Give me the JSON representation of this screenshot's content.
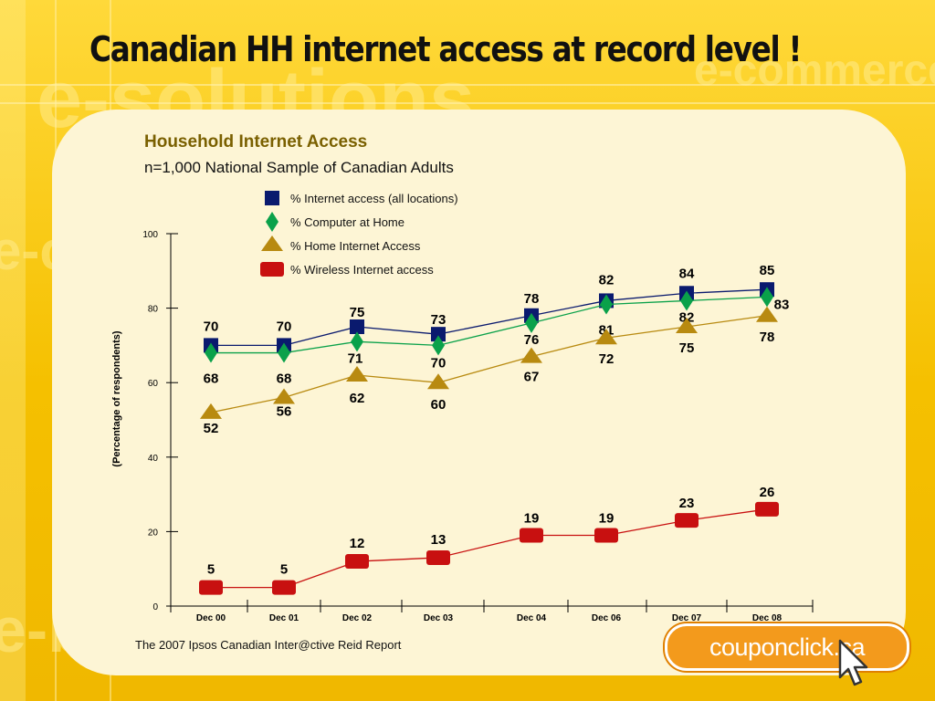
{
  "slide": {
    "title": "Canadian HH internet access at record level !",
    "source": "The 2007 Ipsos Canadian Inter@ctive Reid Report",
    "logo_text": "couponclick.ca"
  },
  "colors": {
    "background": "#f7c600",
    "panel": "#fdf5d5",
    "internet_all": "#0a1a6e",
    "computer_home": "#0aa14a",
    "home_internet": "#b88a10",
    "wireless": "#c81010"
  },
  "chart_data": {
    "type": "line",
    "title": "Household Internet Access",
    "subtitle": "n=1,000 National Sample of Canadian Adults",
    "xlabel": "",
    "ylabel": "(Percentage of respondents)",
    "ylim": [
      0,
      100
    ],
    "yticks": [
      0,
      20,
      40,
      60,
      80,
      100
    ],
    "categories": [
      "Dec 00",
      "Dec 01",
      "Dec 02",
      "Dec 03",
      "Dec 04",
      "Dec 06",
      "Dec 07",
      "Dec 08"
    ],
    "legend_position": "top",
    "series": [
      {
        "name": "% Internet access (all locations)",
        "marker": "square",
        "color": "#0a1a6e",
        "values": [
          70,
          70,
          75,
          73,
          78,
          82,
          84,
          85
        ]
      },
      {
        "name": "% Computer at Home",
        "marker": "diamond",
        "color": "#0aa14a",
        "values": [
          68,
          68,
          71,
          70,
          76,
          81,
          82,
          83
        ]
      },
      {
        "name": "% Home Internet Access",
        "marker": "triangle",
        "color": "#b88a10",
        "values": [
          52,
          56,
          62,
          60,
          67,
          72,
          75,
          78
        ]
      },
      {
        "name": "% Wireless Internet access",
        "marker": "rect",
        "color": "#c81010",
        "values": [
          5,
          5,
          12,
          13,
          19,
          19,
          23,
          26
        ]
      }
    ]
  }
}
